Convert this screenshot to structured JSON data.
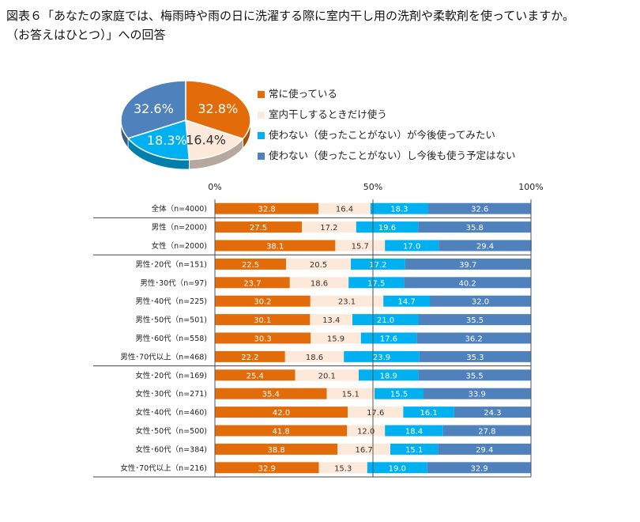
{
  "title": {
    "line1": "図表６「あなたの家庭では、梅雨時や雨の日に洗濯する際に室内干し用の洗剤や柔軟剤を使っていますか。",
    "line2": "（お答えはひとつ）」への回答"
  },
  "chart_data": {
    "type": "bar",
    "stacked": true,
    "orientation": "horizontal",
    "xlim": [
      0,
      100
    ],
    "x_ticks": [
      "0%",
      "50%",
      "100%"
    ],
    "categories": [
      "全体（n=4000)",
      "男性（n=2000)",
      "女性（n=2000)",
      "男性･20代（n=151)",
      "男性･30代（n=97)",
      "男性･40代（n=225)",
      "男性･50代（n=501)",
      "男性･60代（n=558)",
      "男性･70代以上（n=468)",
      "女性･20代（n=169)",
      "女性･30代（n=271)",
      "女性･40代（n=460)",
      "女性･50代（n=500)",
      "女性･60代（n=384)",
      "女性･70代以上（n=216)"
    ],
    "series": [
      {
        "name": "常に使っている",
        "color": "#E36C0A",
        "values": [
          32.8,
          27.5,
          38.1,
          22.5,
          23.7,
          30.2,
          30.1,
          30.3,
          22.2,
          25.4,
          35.4,
          42.0,
          41.8,
          38.8,
          32.9
        ]
      },
      {
        "name": "室内干しするときだけ使う",
        "color": "#FDE9D9",
        "values": [
          16.4,
          17.2,
          15.7,
          20.5,
          18.6,
          23.1,
          13.4,
          15.9,
          18.6,
          20.1,
          15.1,
          17.6,
          12.0,
          16.7,
          15.3
        ]
      },
      {
        "name": "使わない（使ったことがない）が今後使ってみたい",
        "color": "#00B0F0",
        "values": [
          18.3,
          19.6,
          17.0,
          17.2,
          17.5,
          14.7,
          21.0,
          17.6,
          23.9,
          18.9,
          15.5,
          16.1,
          18.4,
          15.1,
          19.0
        ]
      },
      {
        "name": "使わない（使ったことがない）し今後も使う予定はない",
        "color": "#4F81BD",
        "values": [
          32.6,
          35.8,
          29.4,
          39.7,
          40.2,
          32.0,
          35.5,
          36.2,
          35.3,
          35.5,
          33.9,
          24.3,
          27.8,
          29.4,
          32.9
        ]
      }
    ],
    "pie": {
      "type": "pie",
      "values": [
        32.8,
        16.4,
        18.3,
        32.6
      ],
      "labels": [
        "32.8%",
        "16.4%",
        "18.3%",
        "32.6%"
      ]
    }
  }
}
